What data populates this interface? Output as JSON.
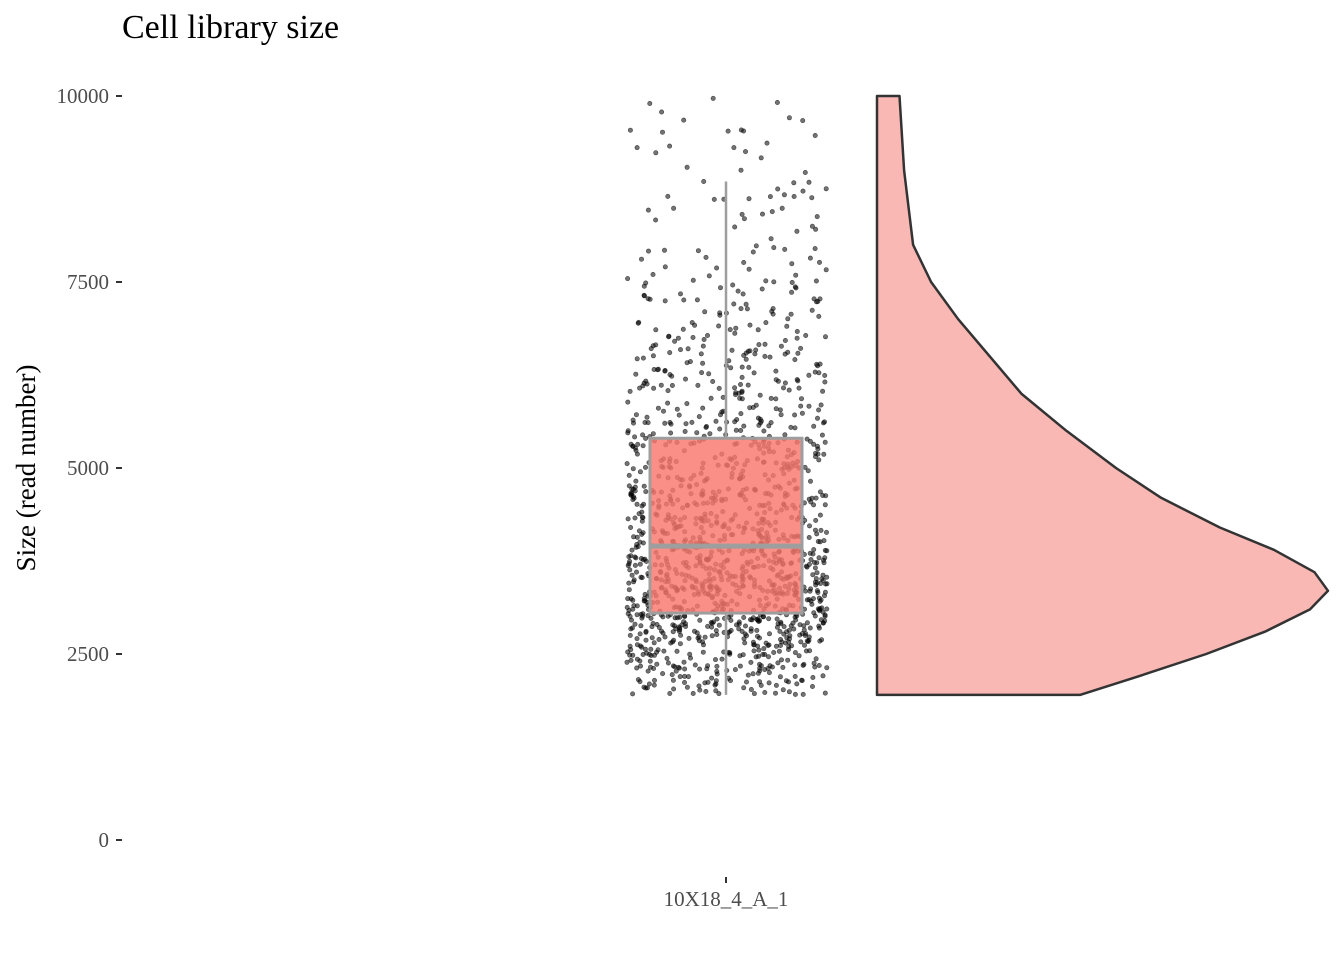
{
  "chart_data": {
    "type": "raincloud",
    "title": "Cell library size",
    "xlabel": "",
    "ylabel": "Size (read number)",
    "ylim": [
      0,
      10000
    ],
    "yticks": [
      0,
      2500,
      5000,
      7500,
      10000
    ],
    "yticklabels": [
      "0",
      "2500",
      "5000",
      "7500",
      "10000"
    ],
    "categories": [
      "10X18_4_A_1"
    ],
    "boxplot": {
      "whisker_low": 1950,
      "q1": 3050,
      "median": 3950,
      "q3": 5400,
      "whisker_high": 8850
    },
    "points": {
      "count": 1400,
      "min": 1950,
      "max": 10000,
      "density_peak": 3350
    },
    "violin": {
      "min": 1950,
      "max": 10000,
      "density": [
        [
          1950,
          0.45
        ],
        [
          2200,
          0.58
        ],
        [
          2500,
          0.73
        ],
        [
          2800,
          0.86
        ],
        [
          3100,
          0.96
        ],
        [
          3350,
          1.0
        ],
        [
          3600,
          0.97
        ],
        [
          3900,
          0.88
        ],
        [
          4200,
          0.76
        ],
        [
          4600,
          0.63
        ],
        [
          5000,
          0.53
        ],
        [
          5500,
          0.42
        ],
        [
          6000,
          0.32
        ],
        [
          6500,
          0.25
        ],
        [
          7000,
          0.18
        ],
        [
          7500,
          0.12
        ],
        [
          8000,
          0.08
        ],
        [
          8500,
          0.07
        ],
        [
          9000,
          0.06
        ],
        [
          9500,
          0.055
        ],
        [
          10000,
          0.05
        ]
      ]
    },
    "colors": {
      "box_fill": "#f8766d",
      "box_stroke": "#9e9e9e",
      "violin_fill": "#f9b8b4",
      "violin_stroke": "#333333",
      "points": "#000000",
      "axis": "#333333"
    }
  }
}
